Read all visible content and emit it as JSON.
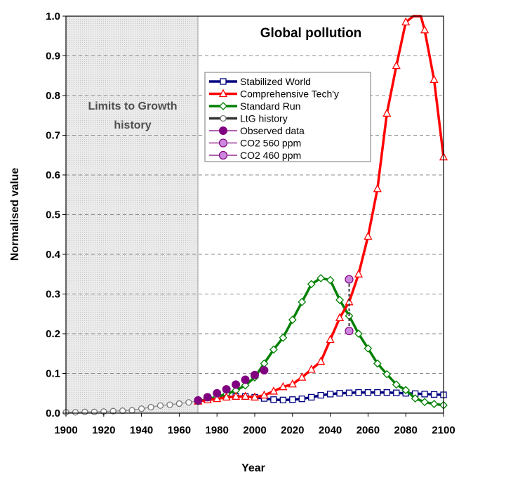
{
  "chart_data": {
    "type": "line",
    "title": "Global pollution",
    "xlabel": "Year",
    "ylabel": "Normalised value",
    "xlim": [
      1900,
      2100
    ],
    "ylim": [
      0,
      1.0
    ],
    "x_ticks": [
      "1900",
      "1920",
      "1940",
      "1960",
      "1980",
      "2000",
      "2020",
      "2040",
      "2060",
      "2080",
      "2100"
    ],
    "y_ticks": [
      "0.0",
      "0.1",
      "0.2",
      "0.3",
      "0.4",
      "0.5",
      "0.6",
      "0.7",
      "0.8",
      "0.9",
      "1.0"
    ],
    "grid": "horizontal dashed",
    "legend_position": "upper-middle",
    "shaded_region": {
      "from": 1900,
      "to": 1970,
      "label_line1": "Limits to Growth",
      "label_line2": "history"
    },
    "series": [
      {
        "name": "Stabilized World",
        "color": "#000080",
        "line": true,
        "marker": "square-open",
        "points": [
          [
            1970,
            0.03
          ],
          [
            1975,
            0.033
          ],
          [
            1980,
            0.037
          ],
          [
            1985,
            0.04
          ],
          [
            1990,
            0.042
          ],
          [
            1995,
            0.042
          ],
          [
            2000,
            0.04
          ],
          [
            2005,
            0.037
          ],
          [
            2010,
            0.034
          ],
          [
            2015,
            0.033
          ],
          [
            2020,
            0.034
          ],
          [
            2025,
            0.036
          ],
          [
            2030,
            0.04
          ],
          [
            2035,
            0.045
          ],
          [
            2040,
            0.048
          ],
          [
            2045,
            0.05
          ],
          [
            2050,
            0.051
          ],
          [
            2055,
            0.052
          ],
          [
            2060,
            0.052
          ],
          [
            2065,
            0.052
          ],
          [
            2070,
            0.052
          ],
          [
            2075,
            0.051
          ],
          [
            2080,
            0.05
          ],
          [
            2085,
            0.049
          ],
          [
            2090,
            0.048
          ],
          [
            2095,
            0.047
          ],
          [
            2100,
            0.046
          ]
        ]
      },
      {
        "name": "Comprehensive Tech'y",
        "color": "#ff0000",
        "line": true,
        "marker": "triangle-open",
        "points": [
          [
            1970,
            0.03
          ],
          [
            1975,
            0.033
          ],
          [
            1980,
            0.036
          ],
          [
            1985,
            0.04
          ],
          [
            1990,
            0.042
          ],
          [
            1995,
            0.042
          ],
          [
            2000,
            0.04
          ],
          [
            2005,
            0.045
          ],
          [
            2010,
            0.055
          ],
          [
            2015,
            0.066
          ],
          [
            2020,
            0.073
          ],
          [
            2025,
            0.09
          ],
          [
            2030,
            0.11
          ],
          [
            2035,
            0.13
          ],
          [
            2040,
            0.185
          ],
          [
            2045,
            0.24
          ],
          [
            2050,
            0.28
          ],
          [
            2055,
            0.35
          ],
          [
            2060,
            0.445
          ],
          [
            2065,
            0.565
          ],
          [
            2070,
            0.755
          ],
          [
            2075,
            0.875
          ],
          [
            2080,
            0.985
          ],
          [
            2084,
            1.0
          ],
          [
            2088,
            1.0
          ],
          [
            2090,
            0.965
          ],
          [
            2095,
            0.84
          ],
          [
            2100,
            0.645
          ]
        ]
      },
      {
        "name": "Standard Run",
        "color": "#008000",
        "line": true,
        "marker": "diamond-open",
        "points": [
          [
            1970,
            0.03
          ],
          [
            1975,
            0.035
          ],
          [
            1980,
            0.041
          ],
          [
            1985,
            0.048
          ],
          [
            1990,
            0.057
          ],
          [
            1995,
            0.07
          ],
          [
            2000,
            0.09
          ],
          [
            2005,
            0.125
          ],
          [
            2010,
            0.16
          ],
          [
            2015,
            0.19
          ],
          [
            2020,
            0.235
          ],
          [
            2025,
            0.28
          ],
          [
            2030,
            0.325
          ],
          [
            2035,
            0.34
          ],
          [
            2040,
            0.335
          ],
          [
            2045,
            0.285
          ],
          [
            2050,
            0.245
          ],
          [
            2055,
            0.2
          ],
          [
            2060,
            0.163
          ],
          [
            2065,
            0.125
          ],
          [
            2070,
            0.098
          ],
          [
            2075,
            0.072
          ],
          [
            2080,
            0.058
          ],
          [
            2085,
            0.037
          ],
          [
            2090,
            0.028
          ],
          [
            2095,
            0.023
          ],
          [
            2100,
            0.02
          ]
        ]
      },
      {
        "name": "LtG history",
        "color": "#333333",
        "line": true,
        "marker": "circle-open",
        "points": [
          [
            1900,
            0.002
          ],
          [
            1905,
            0.002
          ],
          [
            1910,
            0.003
          ],
          [
            1915,
            0.003
          ],
          [
            1920,
            0.004
          ],
          [
            1925,
            0.005
          ],
          [
            1930,
            0.006
          ],
          [
            1935,
            0.007
          ],
          [
            1940,
            0.011
          ],
          [
            1945,
            0.015
          ],
          [
            1950,
            0.019
          ],
          [
            1955,
            0.021
          ],
          [
            1960,
            0.024
          ],
          [
            1965,
            0.027
          ],
          [
            1970,
            0.03
          ]
        ]
      },
      {
        "name": "Observed data",
        "color": "#800080",
        "line": false,
        "marker": "circle-filled",
        "points": [
          [
            1970,
            0.032
          ],
          [
            1975,
            0.04
          ],
          [
            1980,
            0.05
          ],
          [
            1985,
            0.06
          ],
          [
            1990,
            0.072
          ],
          [
            1995,
            0.084
          ],
          [
            2000,
            0.096
          ],
          [
            2005,
            0.108
          ]
        ]
      },
      {
        "name": "CO2 560 ppm",
        "color": "#800080",
        "line": false,
        "marker": "circle-light",
        "points": [
          [
            2050,
            0.207
          ]
        ]
      },
      {
        "name": "CO2 460 ppm",
        "color": "#800080",
        "line": false,
        "marker": "circle-light",
        "points": [
          [
            2050,
            0.337
          ]
        ]
      }
    ]
  }
}
